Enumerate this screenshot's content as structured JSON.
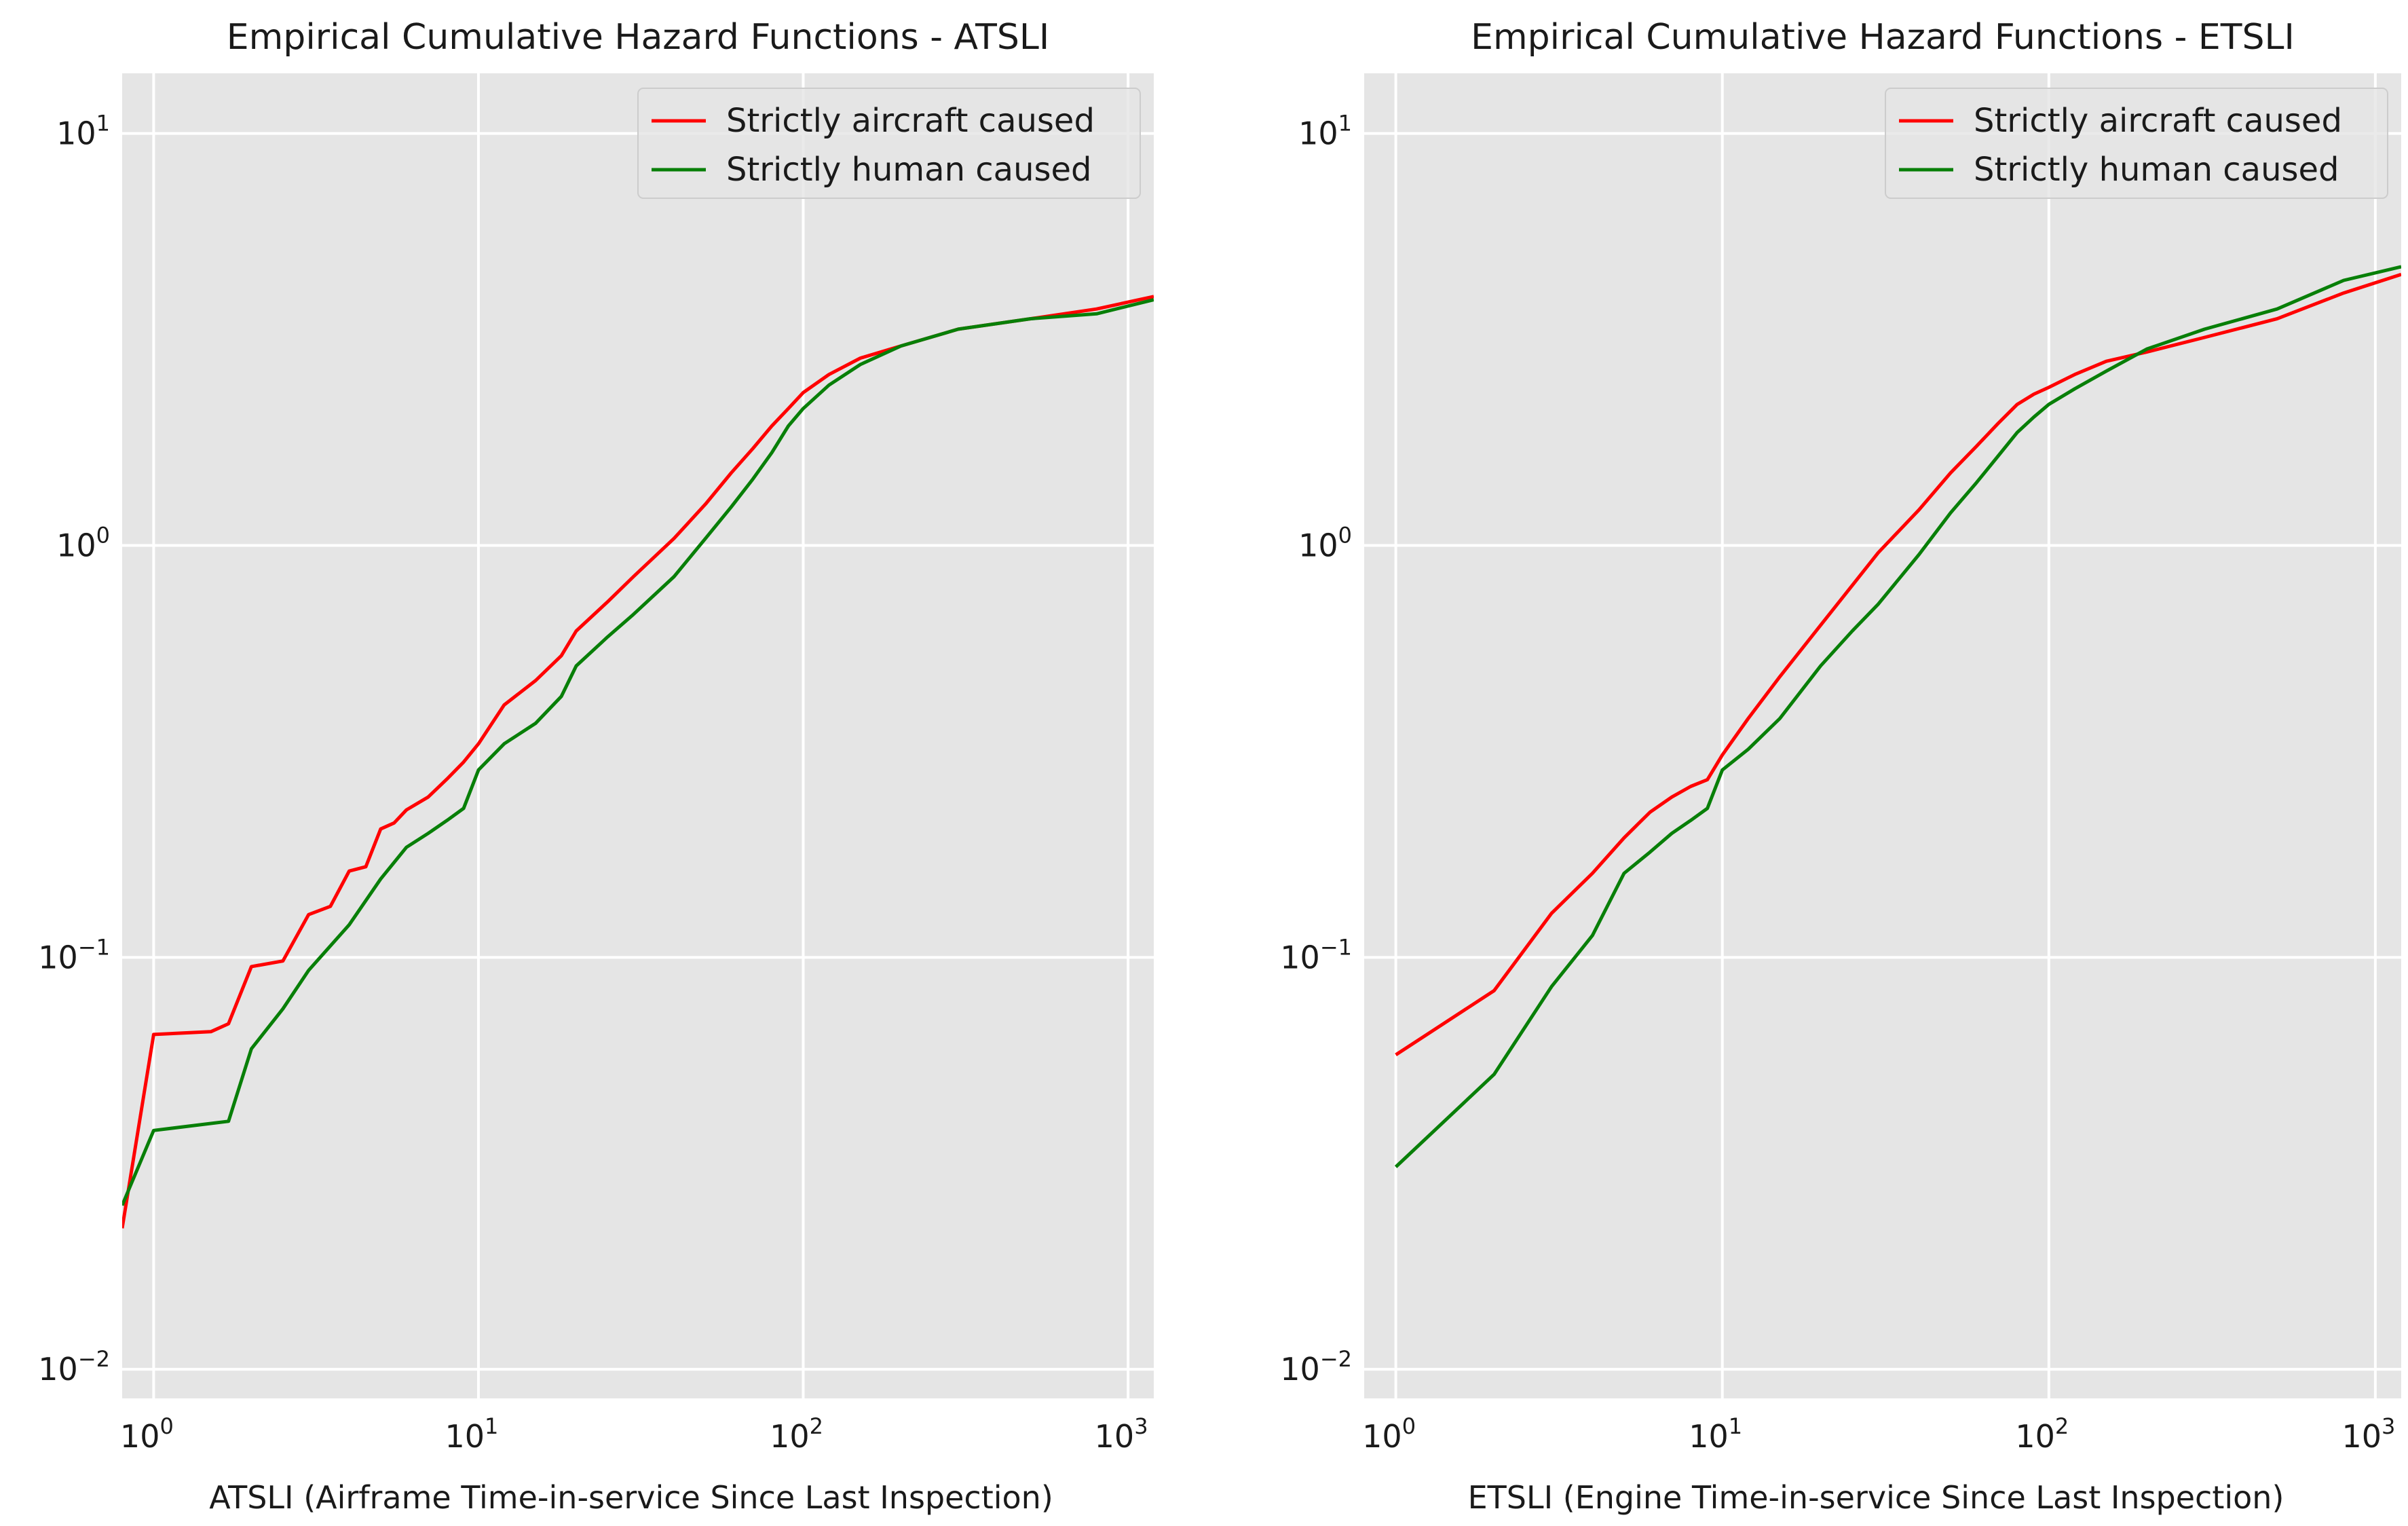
{
  "chart_data": [
    {
      "type": "line",
      "title": "Empirical Cumulative Hazard Functions - ATSLI",
      "xlabel": "ATSLI (Airframe Time-in-service Since Last Inspection)",
      "ylabel": "",
      "xscale": "log",
      "yscale": "log",
      "xlim": [
        0.8,
        1200
      ],
      "ylim": [
        0.0085,
        14
      ],
      "xticks": [
        1,
        10,
        100,
        1000
      ],
      "xtick_labels": [
        {
          "base": "10",
          "exp": "0"
        },
        {
          "base": "10",
          "exp": "1"
        },
        {
          "base": "10",
          "exp": "2"
        },
        {
          "base": "10",
          "exp": "3"
        }
      ],
      "yticks": [
        0.01,
        0.1,
        1,
        10
      ],
      "ytick_labels": [
        {
          "base": "10",
          "exp": "−2"
        },
        {
          "base": "10",
          "exp": "−1"
        },
        {
          "base": "10",
          "exp": "0"
        },
        {
          "base": "10",
          "exp": "1"
        }
      ],
      "grid": true,
      "legend": "top-right",
      "series": [
        {
          "name": "Strictly aircraft caused",
          "color": "#ff0000",
          "x": [
            0.8,
            1.0,
            1.5,
            1.7,
            2.0,
            2.5,
            3.0,
            3.5,
            4.0,
            4.5,
            5.0,
            5.5,
            6.0,
            7.0,
            8.0,
            9.0,
            10.0,
            12.0,
            15.0,
            18.0,
            20.0,
            25.0,
            30.0,
            40.0,
            50.0,
            60.0,
            70.0,
            80.0,
            90.0,
            100.0,
            120.0,
            150.0,
            200.0,
            300.0,
            500.0,
            800.0,
            1200.0
          ],
          "y": [
            0.022,
            0.065,
            0.066,
            0.069,
            0.095,
            0.098,
            0.127,
            0.133,
            0.162,
            0.166,
            0.205,
            0.212,
            0.228,
            0.245,
            0.271,
            0.298,
            0.33,
            0.41,
            0.47,
            0.54,
            0.62,
            0.73,
            0.84,
            1.04,
            1.26,
            1.5,
            1.72,
            1.95,
            2.15,
            2.35,
            2.6,
            2.85,
            3.05,
            3.35,
            3.55,
            3.75,
            4.02
          ]
        },
        {
          "name": "Strictly human caused",
          "color": "#087f08",
          "x": [
            0.8,
            1.0,
            1.7,
            2.0,
            2.5,
            3.0,
            4.0,
            5.0,
            6.0,
            7.0,
            8.0,
            9.0,
            10.0,
            12.0,
            15.0,
            18.0,
            20.0,
            25.0,
            30.0,
            40.0,
            50.0,
            60.0,
            70.0,
            80.0,
            90.0,
            100.0,
            120.0,
            150.0,
            200.0,
            300.0,
            500.0,
            800.0,
            1200.0
          ],
          "y": [
            0.025,
            0.038,
            0.04,
            0.06,
            0.075,
            0.093,
            0.12,
            0.155,
            0.185,
            0.2,
            0.215,
            0.23,
            0.285,
            0.33,
            0.37,
            0.43,
            0.51,
            0.6,
            0.68,
            0.84,
            1.04,
            1.24,
            1.45,
            1.68,
            1.95,
            2.15,
            2.45,
            2.75,
            3.05,
            3.35,
            3.55,
            3.65,
            3.95
          ]
        }
      ]
    },
    {
      "type": "line",
      "title": "Empirical Cumulative Hazard Functions - ETSLI",
      "xlabel": "ETSLI (Engine Time-in-service Since Last Inspection)",
      "ylabel": "",
      "xscale": "log",
      "yscale": "log",
      "xlim": [
        0.8,
        1200
      ],
      "ylim": [
        0.0085,
        14
      ],
      "xticks": [
        1,
        10,
        100,
        1000
      ],
      "xtick_labels": [
        {
          "base": "10",
          "exp": "0"
        },
        {
          "base": "10",
          "exp": "1"
        },
        {
          "base": "10",
          "exp": "2"
        },
        {
          "base": "10",
          "exp": "3"
        }
      ],
      "yticks": [
        0.01,
        0.1,
        1,
        10
      ],
      "ytick_labels": [
        {
          "base": "10",
          "exp": "−2"
        },
        {
          "base": "10",
          "exp": "−1"
        },
        {
          "base": "10",
          "exp": "0"
        },
        {
          "base": "10",
          "exp": "1"
        }
      ],
      "grid": true,
      "legend": "top-right",
      "series": [
        {
          "name": "Strictly aircraft caused",
          "color": "#ff0000",
          "x": [
            1,
            2,
            3,
            4,
            5,
            6,
            7,
            8,
            9,
            10,
            12,
            15,
            20,
            25,
            30,
            40,
            50,
            60,
            70,
            80,
            90,
            100,
            120,
            150,
            200,
            300,
            500,
            800,
            1200
          ],
          "y": [
            0.058,
            0.083,
            0.128,
            0.16,
            0.195,
            0.225,
            0.245,
            0.26,
            0.27,
            0.31,
            0.38,
            0.48,
            0.64,
            0.8,
            0.96,
            1.22,
            1.5,
            1.74,
            1.98,
            2.2,
            2.33,
            2.42,
            2.6,
            2.8,
            2.95,
            3.2,
            3.55,
            4.1,
            4.55
          ]
        },
        {
          "name": "Strictly human caused",
          "color": "#087f08",
          "x": [
            1,
            2,
            3,
            4,
            5,
            6,
            7,
            8,
            9,
            10,
            12,
            15,
            20,
            25,
            30,
            40,
            50,
            60,
            70,
            80,
            90,
            100,
            120,
            150,
            200,
            300,
            500,
            800,
            1200
          ],
          "y": [
            0.031,
            0.052,
            0.085,
            0.113,
            0.16,
            0.18,
            0.2,
            0.215,
            0.23,
            0.285,
            0.32,
            0.38,
            0.51,
            0.62,
            0.72,
            0.95,
            1.2,
            1.42,
            1.65,
            1.88,
            2.05,
            2.2,
            2.4,
            2.65,
            3.0,
            3.35,
            3.75,
            4.4,
            4.75
          ]
        }
      ]
    }
  ]
}
